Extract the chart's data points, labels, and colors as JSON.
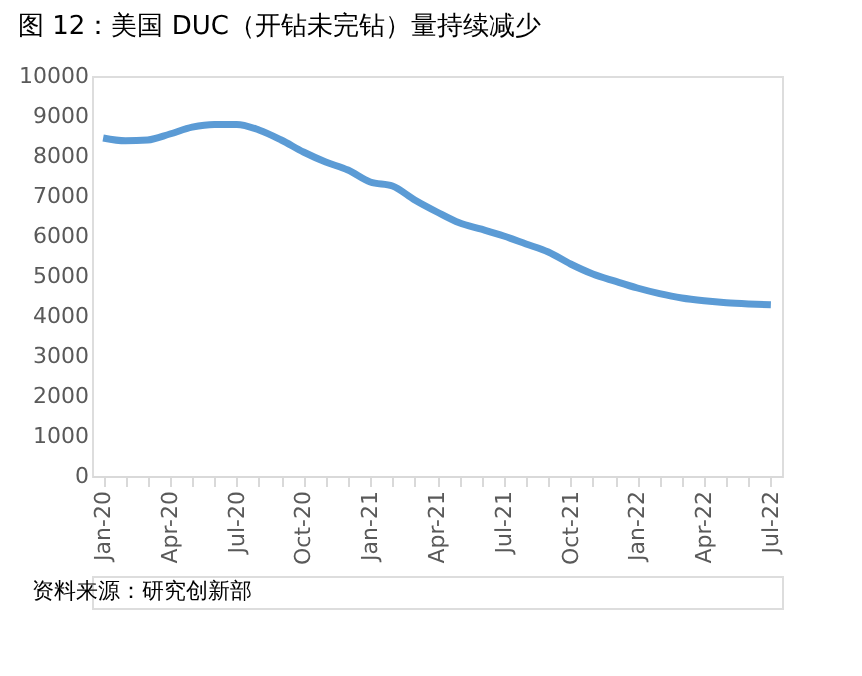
{
  "chart_data": {
    "type": "line",
    "title": "图 12：美国 DUC（开钻未完钻）量持续减少",
    "categories": [
      "Jan-20",
      null,
      null,
      "Apr-20",
      null,
      null,
      "Jul-20",
      null,
      null,
      "Oct-20",
      null,
      null,
      "Jan-21",
      null,
      null,
      "Apr-21",
      null,
      null,
      "Jul-21",
      null,
      null,
      "Oct-21",
      null,
      null,
      "Jan-22",
      null,
      null,
      "Apr-22",
      null,
      null,
      "Jul-22"
    ],
    "series": [
      {
        "color": "#5b9bd5",
        "values": [
          8450,
          8380,
          8400,
          8550,
          8720,
          8790,
          8790,
          8650,
          8400,
          8100,
          7850,
          7650,
          7350,
          7250,
          6900,
          6600,
          6330,
          6170,
          6000,
          5800,
          5600,
          5300,
          5050,
          4870,
          4700,
          4560,
          4450,
          4380,
          4330,
          4300,
          4280
        ]
      }
    ],
    "ylim": [
      0,
      10000
    ],
    "yticks": [
      0,
      1000,
      2000,
      3000,
      4000,
      5000,
      6000,
      7000,
      8000,
      9000,
      10000
    ],
    "grid": false,
    "legend": false,
    "marker": "none",
    "line_style": "solid",
    "annotations": [
      "资料来源：研究创新部"
    ]
  }
}
